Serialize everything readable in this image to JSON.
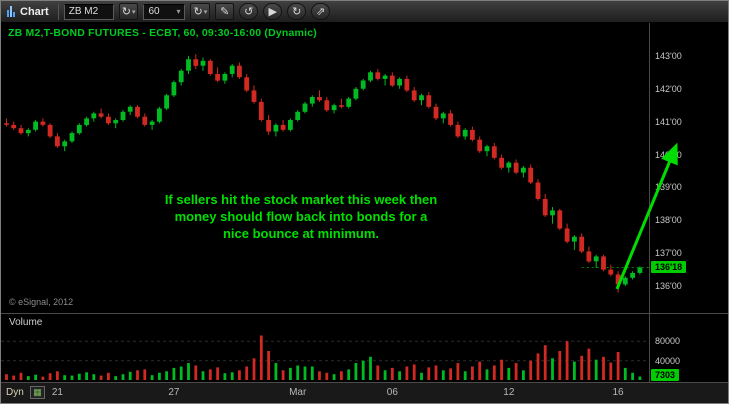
{
  "colors": {
    "up": "#00bb22",
    "down": "#d22a22",
    "accent_green": "#00cc22",
    "annotation_green": "#00e000",
    "badge_bg": "#00cc00",
    "axis_text": "#c8c8c8"
  },
  "icons": {
    "dropdown": "▾",
    "refresh": "↻",
    "pencil": "✎",
    "undo": "↺",
    "redo": "↻",
    "play": "▶",
    "send": "⇗",
    "data_source": "▦"
  },
  "toolbar": {
    "app_label": "Chart",
    "symbol_value": "ZB M2",
    "interval_value": "60"
  },
  "chart": {
    "title": "ZB M2,T-BOND FUTURES - ECBT, 60, 09:30-16:00 (Dynamic)",
    "copyright": "© eSignal, 2012",
    "last_price": "136'18",
    "annotation_lines": [
      "If sellers hit the stock market this week then",
      "money should flow back into bonds for a",
      "nice bounce at minimum."
    ]
  },
  "volume": {
    "label": "Volume",
    "last_value": "7303"
  },
  "bottom": {
    "dyn_label": "Dyn"
  },
  "chart_data": {
    "type": "candlestick",
    "title": "ZB M2,T-BOND FUTURES - ECBT, 60, 09:30-16:00 (Dynamic)",
    "symbol": "ZB M2",
    "interval_minutes": 60,
    "price_format": "32nds",
    "ylim": [
      135.18,
      144.0
    ],
    "grid": false,
    "legend": "none",
    "yticks": [
      {
        "label": "143'00",
        "value": 143
      },
      {
        "label": "142'00",
        "value": 142
      },
      {
        "label": "141'00",
        "value": 141
      },
      {
        "label": "140'00",
        "value": 140
      },
      {
        "label": "139'00",
        "value": 139
      },
      {
        "label": "138'00",
        "value": 138
      },
      {
        "label": "137'00",
        "value": 137
      },
      {
        "label": "136'00",
        "value": 136
      }
    ],
    "xticks": [
      {
        "label": "21",
        "index": 7
      },
      {
        "label": "27",
        "index": 23
      },
      {
        "label": "Mar",
        "index": 40
      },
      {
        "label": "06",
        "index": 53
      },
      {
        "label": "12",
        "index": 69
      },
      {
        "label": "16",
        "index": 84
      }
    ],
    "last_price_value": 136.5625,
    "last_price_label": "136'18",
    "candles": [
      [
        140.95,
        141.1,
        140.85,
        140.9
      ],
      [
        140.9,
        141.0,
        140.75,
        140.8
      ],
      [
        140.8,
        140.9,
        140.6,
        140.65
      ],
      [
        140.65,
        140.8,
        140.55,
        140.75
      ],
      [
        140.75,
        141.05,
        140.7,
        141.0
      ],
      [
        141.0,
        141.1,
        140.85,
        140.9
      ],
      [
        140.9,
        140.95,
        140.5,
        140.55
      ],
      [
        140.55,
        140.65,
        140.2,
        140.25
      ],
      [
        140.25,
        140.45,
        140.1,
        140.4
      ],
      [
        140.4,
        140.7,
        140.35,
        140.65
      ],
      [
        140.65,
        140.95,
        140.6,
        140.9
      ],
      [
        140.9,
        141.15,
        140.85,
        141.1
      ],
      [
        141.1,
        141.3,
        141.0,
        141.25
      ],
      [
        141.25,
        141.4,
        141.1,
        141.15
      ],
      [
        141.15,
        141.25,
        140.9,
        140.95
      ],
      [
        140.95,
        141.1,
        140.8,
        141.05
      ],
      [
        141.05,
        141.35,
        141.0,
        141.3
      ],
      [
        141.3,
        141.5,
        141.2,
        141.45
      ],
      [
        141.45,
        141.5,
        141.1,
        141.15
      ],
      [
        141.15,
        141.25,
        140.85,
        140.9
      ],
      [
        140.9,
        141.05,
        140.75,
        141.0
      ],
      [
        141.0,
        141.45,
        140.95,
        141.4
      ],
      [
        141.4,
        141.85,
        141.35,
        141.8
      ],
      [
        141.8,
        142.25,
        141.75,
        142.2
      ],
      [
        142.2,
        142.6,
        142.1,
        142.55
      ],
      [
        142.55,
        143.0,
        142.45,
        142.9
      ],
      [
        142.9,
        143.05,
        142.6,
        142.7
      ],
      [
        142.7,
        142.95,
        142.55,
        142.85
      ],
      [
        142.85,
        142.9,
        142.4,
        142.45
      ],
      [
        142.45,
        142.65,
        142.2,
        142.25
      ],
      [
        142.25,
        142.5,
        142.15,
        142.45
      ],
      [
        142.45,
        142.75,
        142.35,
        142.7
      ],
      [
        142.7,
        142.8,
        142.3,
        142.35
      ],
      [
        142.35,
        142.45,
        141.9,
        141.95
      ],
      [
        141.95,
        142.1,
        141.55,
        141.6
      ],
      [
        141.6,
        141.7,
        141.0,
        141.05
      ],
      [
        141.05,
        141.2,
        140.6,
        140.7
      ],
      [
        140.7,
        140.95,
        140.55,
        140.9
      ],
      [
        140.9,
        141.05,
        140.7,
        140.75
      ],
      [
        140.75,
        141.1,
        140.7,
        141.05
      ],
      [
        141.05,
        141.35,
        141.0,
        141.3
      ],
      [
        141.3,
        141.6,
        141.25,
        141.55
      ],
      [
        141.55,
        141.8,
        141.45,
        141.75
      ],
      [
        141.75,
        141.95,
        141.6,
        141.65
      ],
      [
        141.65,
        141.75,
        141.3,
        141.35
      ],
      [
        141.35,
        141.55,
        141.25,
        141.5
      ],
      [
        141.5,
        141.7,
        141.4,
        141.45
      ],
      [
        141.45,
        141.75,
        141.4,
        141.7
      ],
      [
        141.7,
        142.05,
        141.65,
        142.0
      ],
      [
        142.0,
        142.3,
        141.95,
        142.25
      ],
      [
        142.25,
        142.55,
        142.2,
        142.5
      ],
      [
        142.5,
        142.6,
        142.25,
        142.3
      ],
      [
        142.3,
        142.45,
        142.1,
        142.4
      ],
      [
        142.4,
        142.5,
        142.05,
        142.1
      ],
      [
        142.1,
        142.35,
        142.0,
        142.3
      ],
      [
        142.3,
        142.4,
        141.9,
        141.95
      ],
      [
        141.95,
        142.05,
        141.6,
        141.65
      ],
      [
        141.65,
        141.85,
        141.5,
        141.8
      ],
      [
        141.8,
        141.9,
        141.4,
        141.45
      ],
      [
        141.45,
        141.55,
        141.05,
        141.1
      ],
      [
        141.1,
        141.3,
        140.95,
        141.25
      ],
      [
        141.25,
        141.35,
        140.85,
        140.9
      ],
      [
        140.9,
        141.0,
        140.5,
        140.55
      ],
      [
        140.55,
        140.8,
        140.45,
        140.75
      ],
      [
        140.75,
        140.85,
        140.4,
        140.45
      ],
      [
        140.45,
        140.55,
        140.05,
        140.1
      ],
      [
        140.1,
        140.3,
        139.95,
        140.25
      ],
      [
        140.25,
        140.35,
        139.85,
        139.9
      ],
      [
        139.9,
        140.0,
        139.55,
        139.6
      ],
      [
        139.6,
        139.8,
        139.45,
        139.75
      ],
      [
        139.75,
        139.85,
        139.4,
        139.45
      ],
      [
        139.45,
        139.65,
        139.3,
        139.6
      ],
      [
        139.6,
        139.7,
        139.1,
        139.15
      ],
      [
        139.15,
        139.25,
        138.6,
        138.65
      ],
      [
        138.65,
        138.8,
        138.1,
        138.15
      ],
      [
        138.15,
        138.4,
        137.9,
        138.3
      ],
      [
        138.3,
        138.35,
        137.7,
        137.75
      ],
      [
        137.75,
        137.9,
        137.3,
        137.35
      ],
      [
        137.35,
        137.55,
        137.1,
        137.5
      ],
      [
        137.5,
        137.6,
        137.0,
        137.05
      ],
      [
        137.05,
        137.2,
        136.7,
        136.75
      ],
      [
        136.75,
        136.95,
        136.55,
        136.9
      ],
      [
        136.9,
        136.95,
        136.45,
        136.5
      ],
      [
        136.5,
        136.65,
        136.3,
        136.35
      ],
      [
        136.35,
        136.45,
        135.8,
        136.05
      ],
      [
        136.05,
        136.3,
        136.0,
        136.25
      ],
      [
        136.25,
        136.45,
        136.2,
        136.4
      ],
      [
        136.4,
        136.6,
        136.35,
        136.56
      ]
    ],
    "volume": {
      "ylim": [
        0,
        120000
      ],
      "yticks": [
        {
          "label": "80000",
          "value": 80000
        },
        {
          "label": "40000",
          "value": 40000
        }
      ],
      "last_value": 7303,
      "values": [
        12000,
        9000,
        15000,
        8000,
        11000,
        7000,
        14000,
        18000,
        10000,
        9000,
        13000,
        16000,
        12000,
        9000,
        15000,
        8000,
        12000,
        17000,
        20000,
        22000,
        10000,
        15000,
        18000,
        25000,
        28000,
        35000,
        30000,
        18000,
        22000,
        26000,
        14000,
        16000,
        20000,
        28000,
        45000,
        92000,
        60000,
        35000,
        20000,
        25000,
        30000,
        28000,
        28000,
        18000,
        15000,
        12000,
        18000,
        22000,
        35000,
        40000,
        48000,
        30000,
        20000,
        25000,
        18000,
        28000,
        32000,
        15000,
        26000,
        30000,
        20000,
        24000,
        35000,
        18000,
        28000,
        38000,
        22000,
        30000,
        42000,
        25000,
        35000,
        20000,
        40000,
        55000,
        72000,
        45000,
        60000,
        80000,
        38000,
        50000,
        65000,
        42000,
        48000,
        36000,
        58000,
        25000,
        15000,
        7303
      ]
    }
  }
}
